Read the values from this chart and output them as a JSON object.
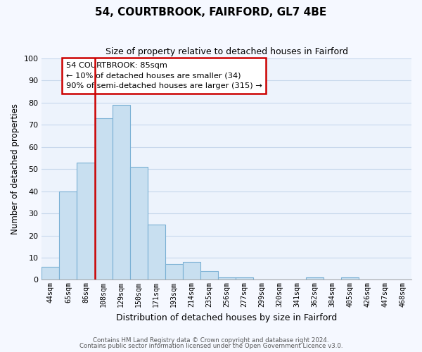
{
  "title": "54, COURTBROOK, FAIRFORD, GL7 4BE",
  "subtitle": "Size of property relative to detached houses in Fairford",
  "xlabel": "Distribution of detached houses by size in Fairford",
  "ylabel": "Number of detached properties",
  "bin_labels": [
    "44sqm",
    "65sqm",
    "86sqm",
    "108sqm",
    "129sqm",
    "150sqm",
    "171sqm",
    "193sqm",
    "214sqm",
    "235sqm",
    "256sqm",
    "277sqm",
    "299sqm",
    "320sqm",
    "341sqm",
    "362sqm",
    "384sqm",
    "405sqm",
    "426sqm",
    "447sqm",
    "468sqm"
  ],
  "bar_heights": [
    6,
    40,
    53,
    73,
    79,
    51,
    25,
    7,
    8,
    4,
    1,
    1,
    0,
    0,
    0,
    1,
    0,
    1,
    0,
    0,
    0
  ],
  "bar_color": "#c8dff0",
  "bar_edge_color": "#7ab0d4",
  "highlight_bar_index": 2,
  "highlight_color": "#cc0000",
  "ylim": [
    0,
    100
  ],
  "yticks": [
    0,
    10,
    20,
    30,
    40,
    50,
    60,
    70,
    80,
    90,
    100
  ],
  "annotation_title": "54 COURTBROOK: 85sqm",
  "annotation_line1": "← 10% of detached houses are smaller (34)",
  "annotation_line2": "90% of semi-detached houses are larger (315) →",
  "footer1": "Contains HM Land Registry data © Crown copyright and database right 2024.",
  "footer2": "Contains public sector information licensed under the Open Government Licence v3.0.",
  "bg_color": "#f5f8ff",
  "grid_color": "#c8d8ec",
  "plot_bg_color": "#edf3fc"
}
